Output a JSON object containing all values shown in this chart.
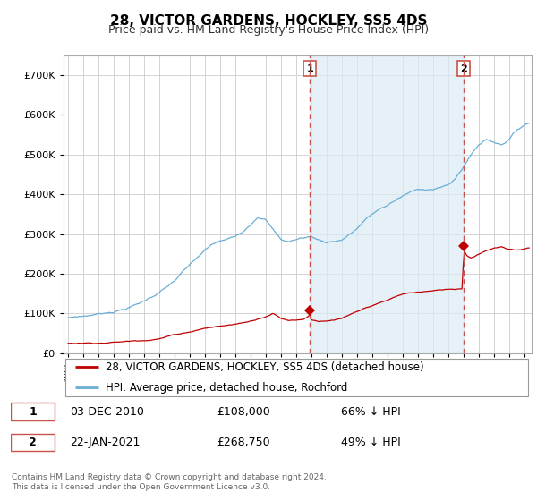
{
  "title": "28, VICTOR GARDENS, HOCKLEY, SS5 4DS",
  "subtitle": "Price paid vs. HM Land Registry's House Price Index (HPI)",
  "hpi_label": "HPI: Average price, detached house, Rochford",
  "property_label": "28, VICTOR GARDENS, HOCKLEY, SS5 4DS (detached house)",
  "sale1_date": "03-DEC-2010",
  "sale1_price": 108000,
  "sale1_pct": "66% ↓ HPI",
  "sale2_date": "22-JAN-2021",
  "sale2_price": 268750,
  "sale2_pct": "49% ↓ HPI",
  "footer": "Contains HM Land Registry data © Crown copyright and database right 2024.\nThis data is licensed under the Open Government Licence v3.0.",
  "hpi_color": "#6aaed6",
  "hpi_fill_color": "#daeaf5",
  "property_color": "#c00000",
  "vline_color": "#c8534a",
  "background_color": "#ffffff",
  "grid_color": "#cccccc",
  "ylim": [
    0,
    750000
  ],
  "yticks": [
    0,
    100000,
    200000,
    300000,
    400000,
    500000,
    600000,
    700000
  ],
  "sale1_year_f": 2010.92,
  "sale2_year_f": 2021.05,
  "xmin": 1994.7,
  "xmax": 2025.5
}
